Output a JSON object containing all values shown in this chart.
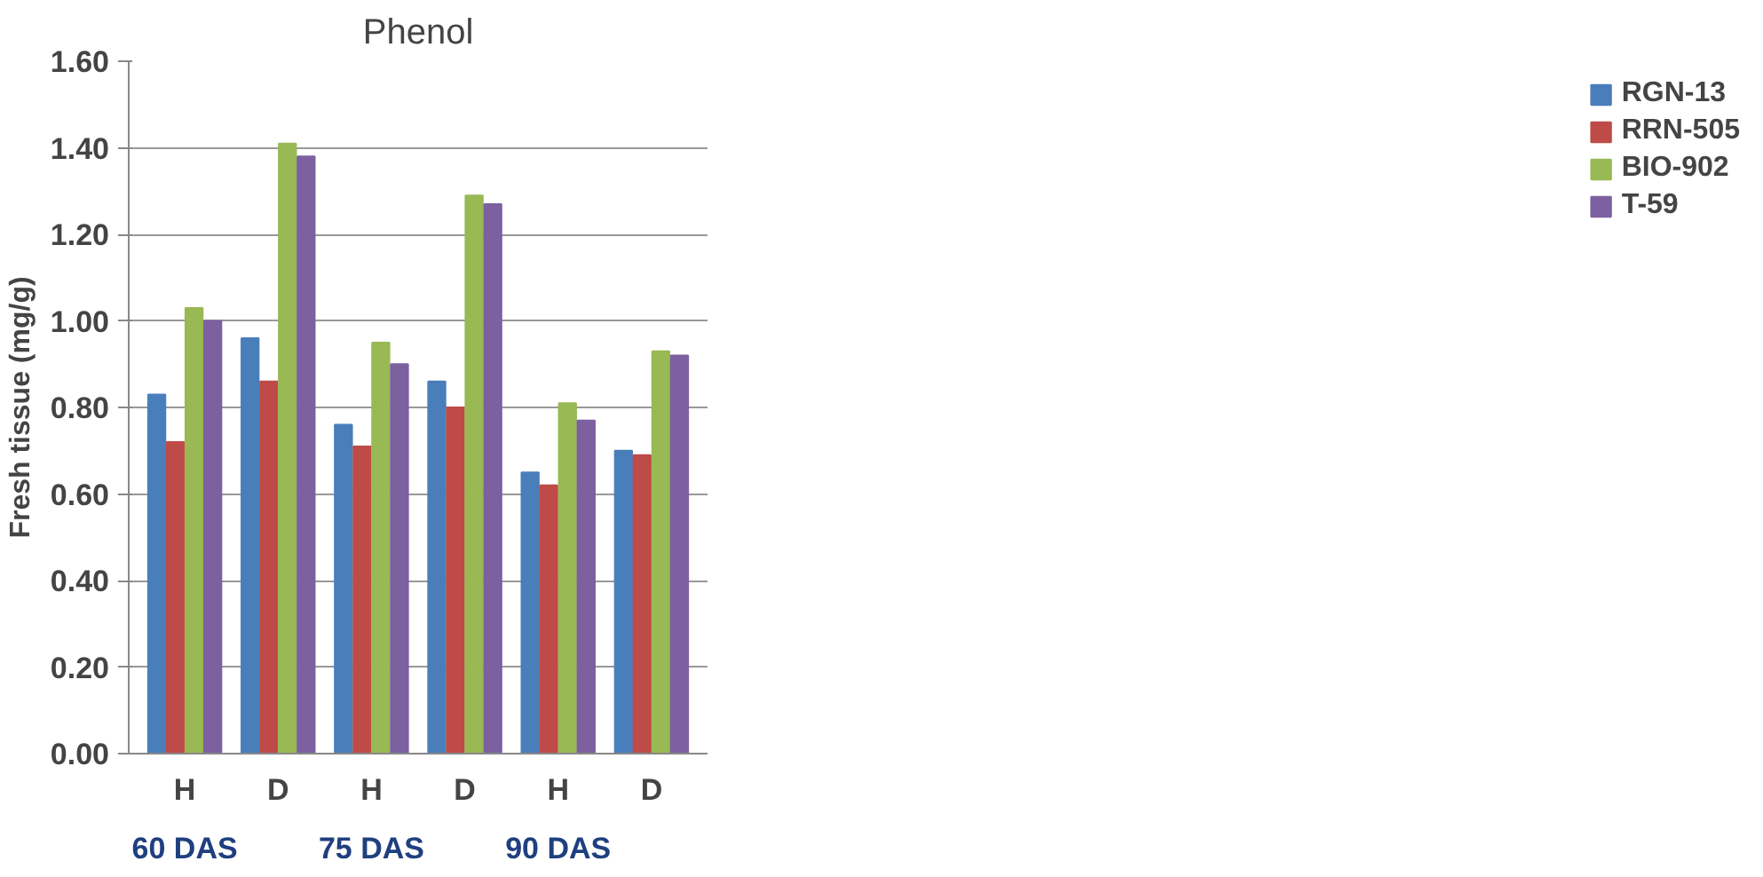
{
  "chart_data": {
    "type": "bar",
    "title": "Phenol",
    "ylabel": "Fresh tissue (mg/g)",
    "categories": [
      "H",
      "D",
      "H",
      "D",
      "H",
      "D"
    ],
    "series": [
      {
        "name": "RGN-13",
        "color": "#4a7ebb",
        "values": [
          0.83,
          0.96,
          0.76,
          0.86,
          0.65,
          0.7
        ]
      },
      {
        "name": "RRN-505",
        "color": "#be4b48",
        "values": [
          0.72,
          0.86,
          0.71,
          0.8,
          0.62,
          0.69
        ]
      },
      {
        "name": "BIO-902",
        "color": "#98b954",
        "values": [
          1.03,
          1.41,
          0.95,
          1.29,
          0.81,
          0.93
        ]
      },
      {
        "name": "T-59",
        "color": "#7d60a0",
        "values": [
          1.0,
          1.38,
          0.9,
          1.27,
          0.77,
          0.92
        ]
      }
    ],
    "annotations": [
      "60 DAS",
      "75 DAS",
      "90 DAS"
    ],
    "ylim": [
      0,
      1.6
    ],
    "yticks": [
      {
        "value": 0,
        "label": "0.00"
      },
      {
        "value": 0.2,
        "label": "0.20"
      },
      {
        "value": 0.4,
        "label": "0.40"
      },
      {
        "value": 0.6,
        "label": "0.60"
      },
      {
        "value": 0.8,
        "label": "0.80"
      },
      {
        "value": 1.0,
        "label": "1.00"
      },
      {
        "value": 1.2,
        "label": "1.20"
      },
      {
        "value": 1.4,
        "label": "1.40"
      },
      {
        "value": 1.6,
        "label": "1.60"
      }
    ],
    "grid": "y",
    "legend": "right"
  }
}
